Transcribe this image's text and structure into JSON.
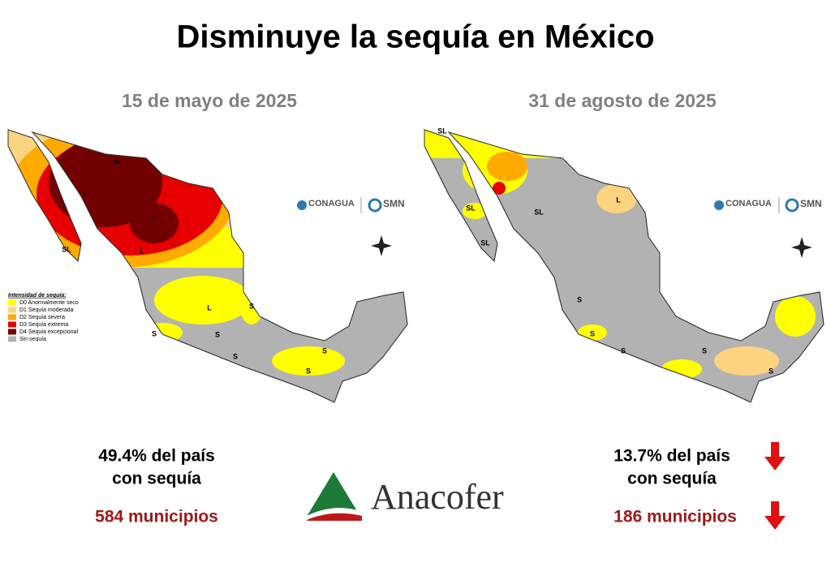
{
  "title": "Disminuye la sequía en México",
  "maps": [
    {
      "date": "15 de mayo de 2025",
      "labels": [
        "SL",
        "L",
        "L",
        "L",
        "SL",
        "L",
        "S",
        "S",
        "S",
        "S",
        "S",
        "S"
      ],
      "stats": {
        "line1": "49.4% del país",
        "line2": "con sequía",
        "municipios": "584 municipios"
      }
    },
    {
      "date": "31 de agosto de 2025",
      "labels": [
        "SL",
        "SL",
        "SL",
        "SL",
        "L",
        "S",
        "S",
        "S",
        "S",
        "S"
      ],
      "stats": {
        "line1": "13.7% del país",
        "line2": "con sequía",
        "municipios": "186 municipios"
      }
    }
  ],
  "legend": {
    "title": "Intensidad de sequía:",
    "items": [
      {
        "label": "D0 Anormalmente seco",
        "color": "#ffff00"
      },
      {
        "label": "D1 Sequía moderada",
        "color": "#fcd37f"
      },
      {
        "label": "D2 Sequía severa",
        "color": "#ffaa00"
      },
      {
        "label": "D3 Sequía extrema",
        "color": "#e60000"
      },
      {
        "label": "D4 Sequía excepcional",
        "color": "#730000"
      },
      {
        "label": "Sin sequía",
        "color": "#b2b2b2"
      }
    ]
  },
  "logos": {
    "conagua": "CONAGUA",
    "smn": "SMN",
    "brand": "Anacofer"
  }
}
